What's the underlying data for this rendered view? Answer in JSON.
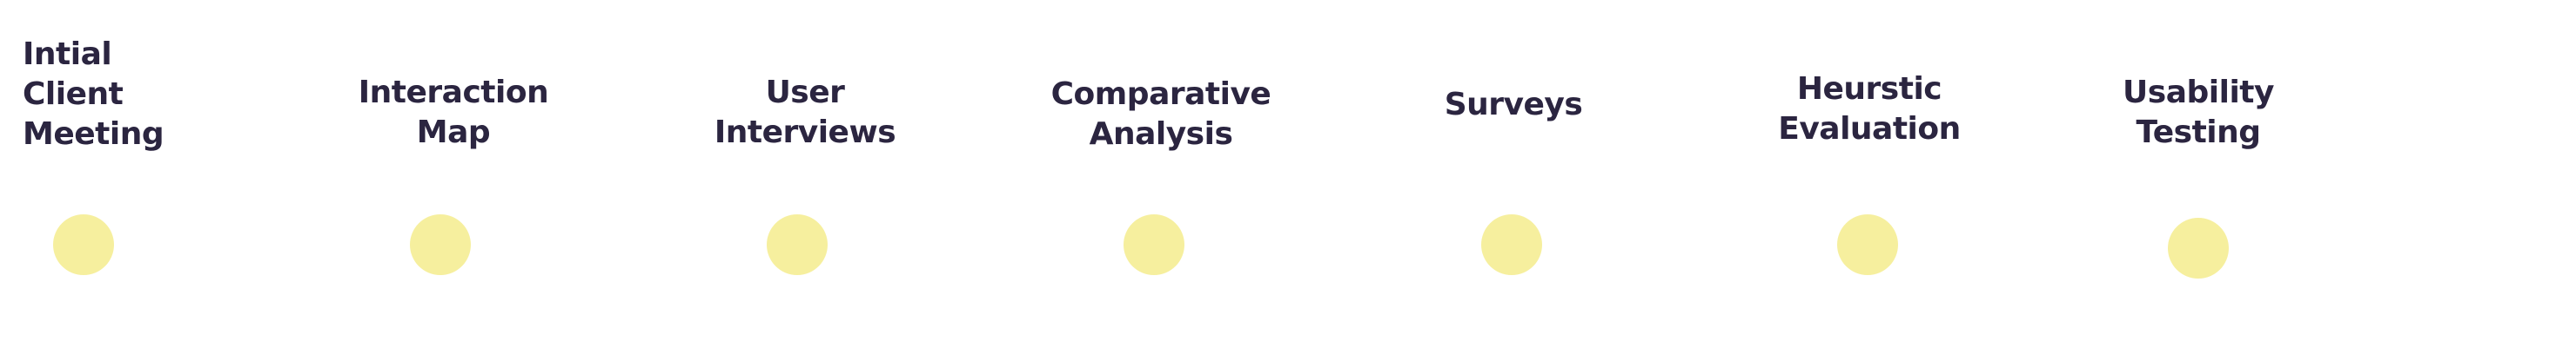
{
  "dot_color": "#f6ef9e",
  "text_color": "#2b2540",
  "steps": [
    {
      "label": "Intial Client\nMeeting"
    },
    {
      "label": "Interaction Map"
    },
    {
      "label": "User Interviews"
    },
    {
      "label": "Comparative\nAnalysis"
    },
    {
      "label": "Surveys"
    },
    {
      "label": "Heurstic\nEvaluation"
    },
    {
      "label": "Usability\nTesting"
    }
  ]
}
